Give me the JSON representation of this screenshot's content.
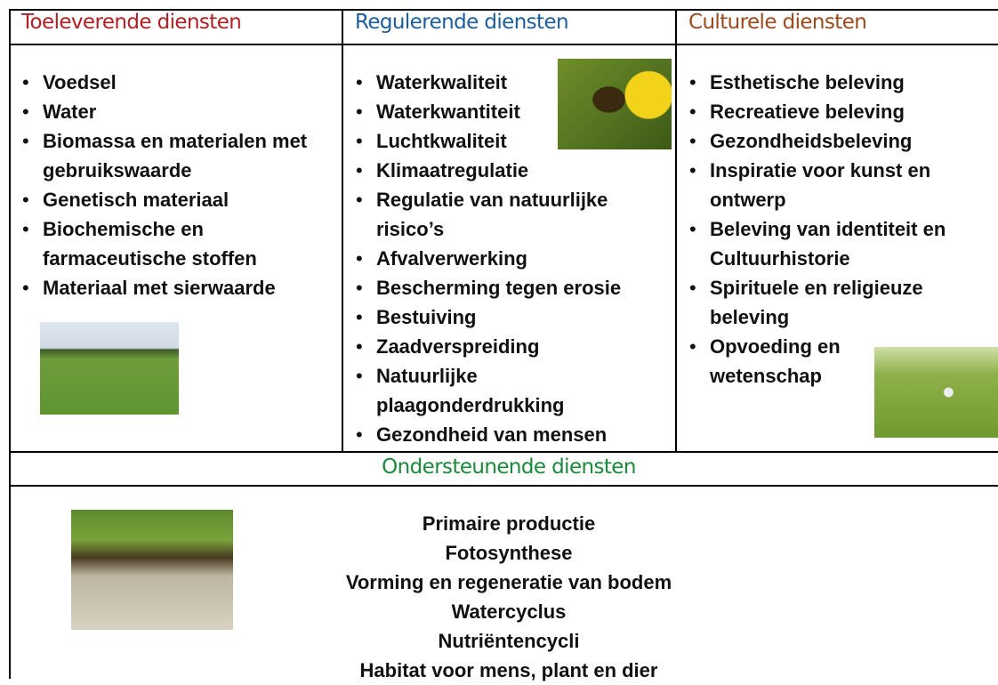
{
  "columns": [
    {
      "title": "Toeleverende diensten",
      "items": [
        "Voedsel",
        "Water",
        "Biomassa en materialen met gebruikswaarde",
        "Genetisch materiaal",
        "Biochemische en farmaceutische stoffen",
        "Materiaal met sierwaarde"
      ]
    },
    {
      "title": "Regulerende diensten",
      "items": [
        "Waterkwaliteit",
        "Waterkwantiteit",
        "Luchtkwaliteit",
        "Klimaatregulatie",
        "Regulatie van natuurlijke risico’s",
        "Afvalverwerking",
        "Bescherming tegen erosie",
        "Bestuiving",
        "Zaadverspreiding",
        "Natuurlijke plaagonderdrukking",
        "Gezondheid van mensen"
      ]
    },
    {
      "title": "Culturele diensten",
      "items": [
        "Esthetische beleving",
        "Recreatieve beleving",
        "Gezondheidsbeleving",
        "Inspiratie voor kunst en ontwerp",
        "Beleving van identiteit en Cultuurhistorie",
        "Spirituele en religieuze beleving",
        "Opvoeding en wetenschap"
      ]
    }
  ],
  "support": {
    "title": "Ondersteunende diensten",
    "items": [
      "Primaire productie",
      "Fotosynthese",
      "Vorming en regeneratie van bodem",
      "Watercyclus",
      "Nutriëntencycli",
      "Habitat voor mens, plant en dier"
    ]
  }
}
